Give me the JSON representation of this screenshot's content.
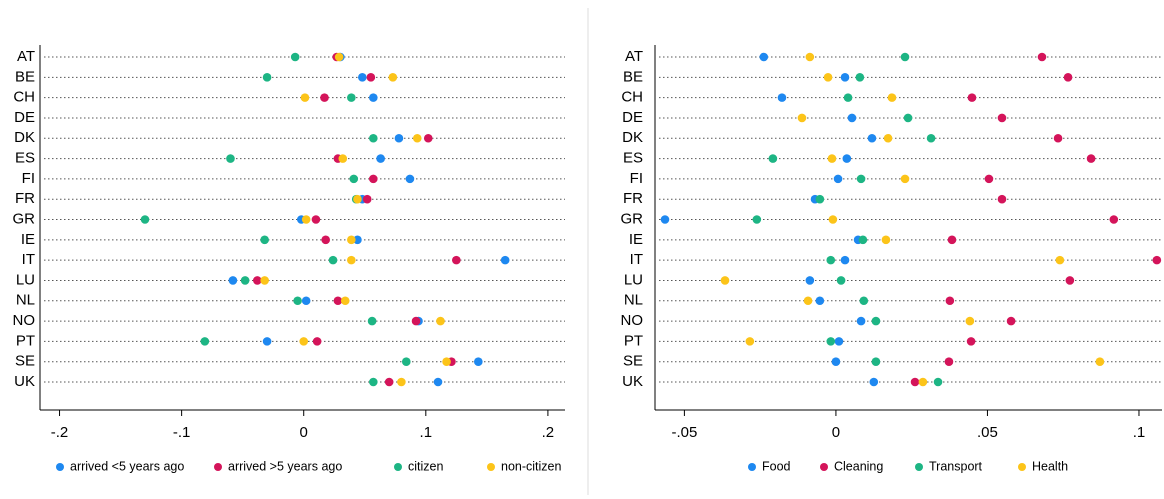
{
  "chart_data": [
    {
      "type": "dot",
      "categories": [
        "AT",
        "BE",
        "CH",
        "DE",
        "DK",
        "ES",
        "FI",
        "FR",
        "GR",
        "IE",
        "IT",
        "LU",
        "NL",
        "NO",
        "PT",
        "SE",
        "UK"
      ],
      "xlim": [
        -0.216,
        0.214
      ],
      "xticks": [
        {
          "value": -0.2,
          "label": "-.2"
        },
        {
          "value": -0.1,
          "label": "-.1"
        },
        0,
        {
          "value": 0.1,
          "label": ".1"
        },
        {
          "value": 0.2,
          "label": ".2"
        }
      ],
      "legend": "bottom",
      "series": [
        {
          "name": "arrived <5 years ago",
          "color": "#1e88f0",
          "values": [
            0.03,
            0.048,
            0.057,
            null,
            0.078,
            0.063,
            0.087,
            0.048,
            -0.002,
            0.044,
            0.165,
            -0.058,
            0.002,
            0.094,
            -0.03,
            0.143,
            0.11
          ]
        },
        {
          "name": "arrived >5 years ago",
          "color": "#d4145a",
          "values": [
            0.027,
            0.055,
            0.017,
            null,
            0.102,
            0.028,
            0.057,
            0.052,
            0.01,
            0.018,
            0.125,
            -0.038,
            0.028,
            0.092,
            0.011,
            0.121,
            0.07
          ]
        },
        {
          "name": "citizen",
          "color": "#1db584",
          "values": [
            -0.007,
            -0.03,
            0.039,
            null,
            0.057,
            -0.06,
            0.041,
            0.043,
            -0.13,
            -0.032,
            0.024,
            -0.048,
            -0.005,
            0.056,
            -0.081,
            0.084,
            0.057
          ]
        },
        {
          "name": "non-citizen",
          "color": "#fcc419",
          "values": [
            0.029,
            0.073,
            0.001,
            null,
            0.093,
            0.032,
            null,
            0.044,
            0.002,
            0.039,
            0.039,
            -0.032,
            0.034,
            0.112,
            0.0,
            0.117,
            0.08
          ]
        }
      ]
    },
    {
      "type": "dot",
      "categories": [
        "AT",
        "BE",
        "CH",
        "DE",
        "DK",
        "ES",
        "FI",
        "FR",
        "GR",
        "IE",
        "IT",
        "LU",
        "NL",
        "NO",
        "PT",
        "SE",
        "UK"
      ],
      "xlim": [
        -0.0597,
        0.1076
      ],
      "xticks": [
        {
          "value": -0.05,
          "label": "-.05"
        },
        0,
        {
          "value": 0.05,
          "label": ".05"
        },
        {
          "value": 0.1,
          "label": ".1"
        }
      ],
      "legend": "bottom",
      "series": [
        {
          "name": "Food",
          "color": "#1e88f0",
          "values": [
            -0.0238,
            0.003,
            -0.0178,
            0.0053,
            0.0119,
            0.0036,
            0.0007,
            -0.0069,
            -0.0564,
            0.0073,
            0.003,
            -0.0086,
            -0.0053,
            0.0083,
            0.001,
            0.0,
            0.0125
          ]
        },
        {
          "name": "Cleaning",
          "color": "#d4145a",
          "values": [
            0.068,
            0.0766,
            0.0449,
            0.0548,
            0.0733,
            0.0842,
            0.0505,
            0.0548,
            0.0917,
            0.0383,
            0.1059,
            0.0772,
            0.0376,
            0.0578,
            0.0446,
            0.0373,
            0.0261
          ]
        },
        {
          "name": "Transport",
          "color": "#1db584",
          "values": [
            0.0228,
            0.0079,
            0.004,
            0.0238,
            0.0314,
            -0.0208,
            0.0083,
            -0.0053,
            -0.0261,
            0.0089,
            -0.0017,
            0.0017,
            0.0092,
            0.0132,
            -0.0017,
            0.0132,
            0.0337
          ]
        },
        {
          "name": "Health",
          "color": "#fcc419",
          "values": [
            -0.0086,
            -0.0026,
            0.0185,
            -0.0112,
            0.0172,
            -0.0013,
            0.0228,
            null,
            -0.001,
            0.0165,
            0.0739,
            -0.0366,
            -0.0092,
            0.0442,
            -0.0284,
            0.0871,
            0.0287
          ]
        }
      ]
    }
  ]
}
